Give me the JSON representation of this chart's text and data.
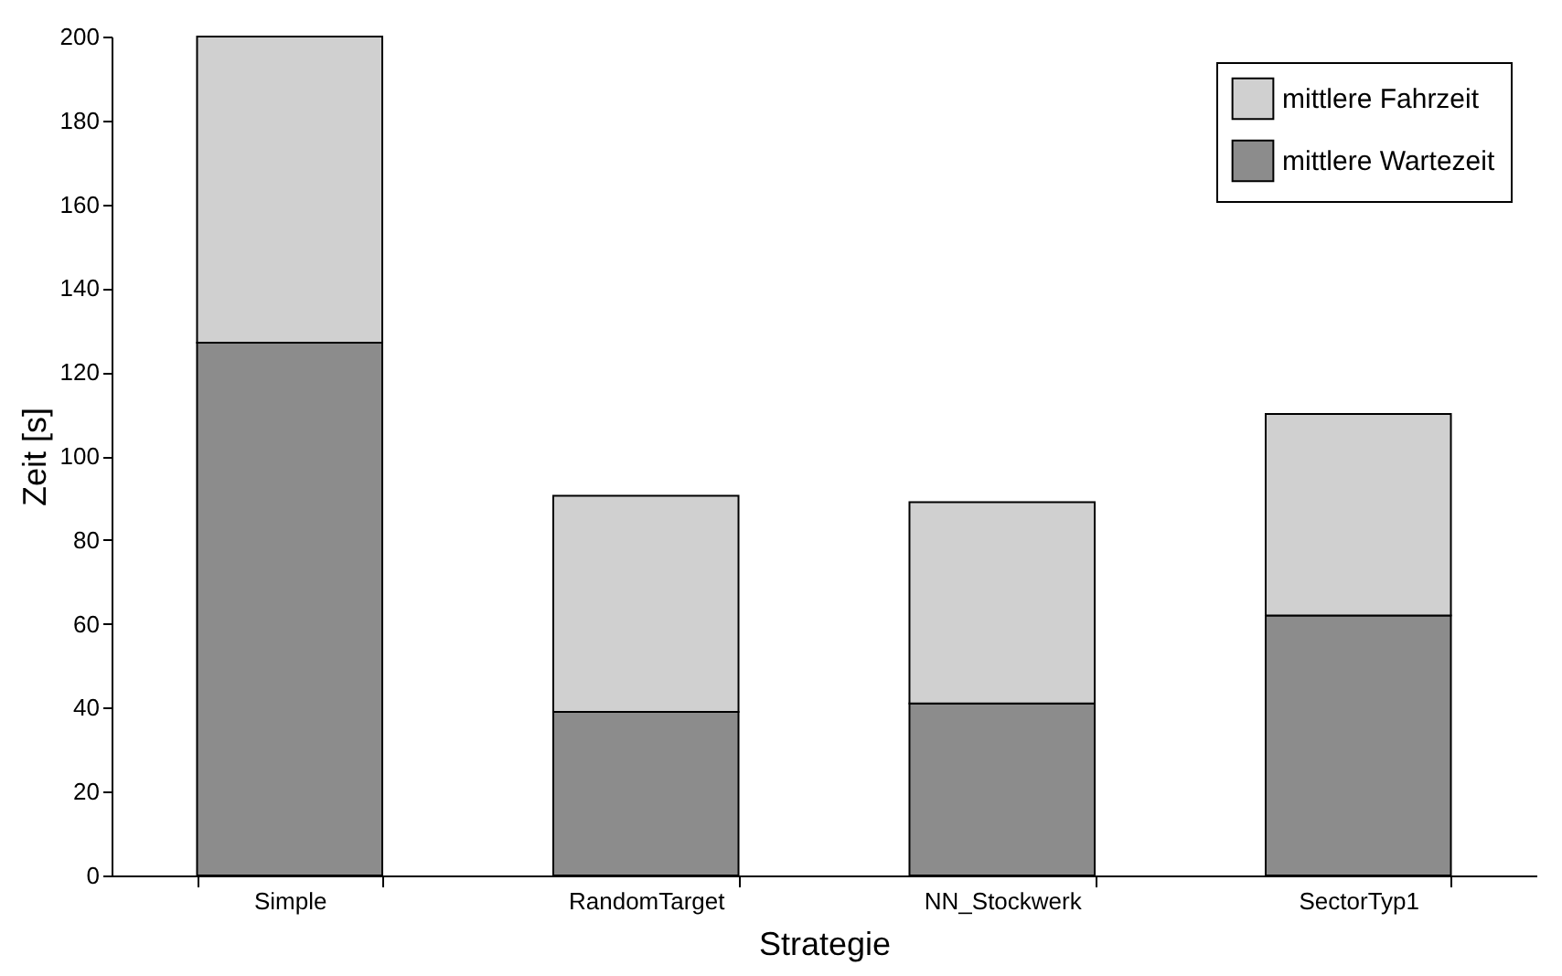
{
  "chart_data": {
    "type": "bar",
    "stacked": true,
    "xlabel": "Strategie",
    "ylabel": "Zeit [s]",
    "categories": [
      "Simple",
      "RandomTarget",
      "NN_Stockwerk",
      "SectorTyp1"
    ],
    "series": [
      {
        "name": "mittlere Wartezeit",
        "color": "#8c8c8c",
        "values": [
          127,
          39,
          41,
          62
        ]
      },
      {
        "name": "mittlere Fahrzeit",
        "color": "#d0d0d0",
        "values": [
          73,
          51.5,
          48,
          48
        ]
      }
    ],
    "ylim": [
      0,
      200
    ],
    "yticks": [
      0,
      20,
      40,
      60,
      80,
      100,
      120,
      140,
      160,
      180,
      200
    ],
    "grid": false,
    "legend": "top right"
  }
}
